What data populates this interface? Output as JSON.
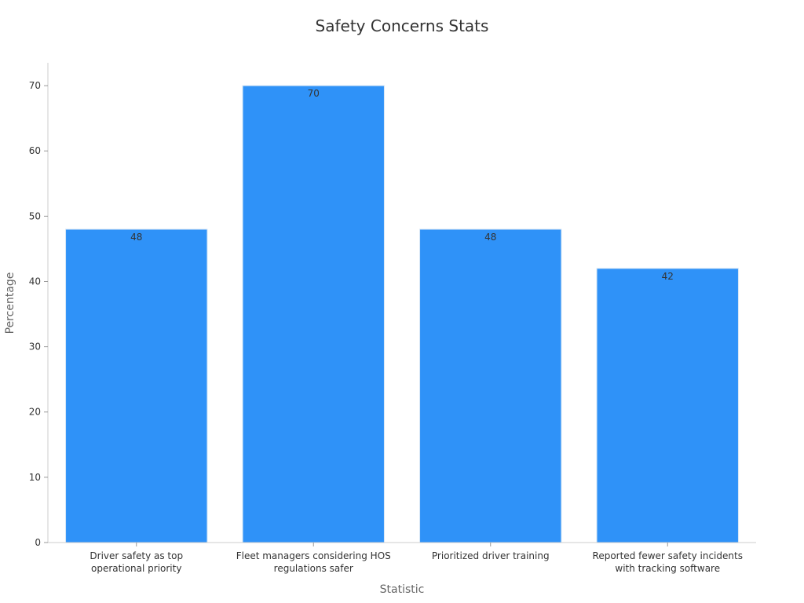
{
  "chart_data": {
    "type": "bar",
    "title": "Safety Concerns Stats",
    "xlabel": "Statistic",
    "ylabel": "Percentage",
    "categories": [
      [
        "Driver safety as top",
        "operational priority"
      ],
      [
        "Fleet managers considering HOS",
        "regulations safer"
      ],
      [
        "Prioritized driver training"
      ],
      [
        "Reported fewer safety incidents",
        "with tracking software"
      ]
    ],
    "values": [
      48,
      70,
      48,
      42
    ],
    "ylim": [
      0,
      73.5
    ],
    "yticks": [
      0,
      10,
      20,
      30,
      40,
      50,
      60,
      70
    ],
    "grid": false,
    "bar_color": "#2F92F8",
    "bar_edge_color": "#D6E6F5"
  }
}
